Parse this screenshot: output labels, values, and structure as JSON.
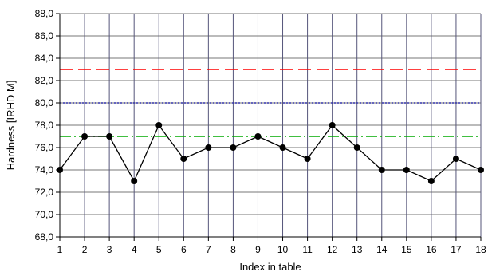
{
  "chart_data": {
    "type": "line",
    "xlabel": "Index in table",
    "ylabel": "Hardness [IRHD M]",
    "xlim": [
      1,
      18
    ],
    "ylim": [
      68,
      88
    ],
    "grid": true,
    "x": [
      1,
      2,
      3,
      4,
      5,
      6,
      7,
      8,
      9,
      10,
      11,
      12,
      13,
      14,
      15,
      16,
      17,
      18
    ],
    "x_tick_labels": [
      "1",
      "2",
      "3",
      "4",
      "5",
      "6",
      "7",
      "8",
      "9",
      "10",
      "11",
      "12",
      "13",
      "14",
      "15",
      "16",
      "17",
      "18"
    ],
    "y_ticks": [
      68,
      70,
      72,
      74,
      76,
      78,
      80,
      82,
      84,
      86,
      88
    ],
    "y_tick_labels": [
      "68,0",
      "70,0",
      "72,0",
      "74,0",
      "76,0",
      "78,0",
      "80,0",
      "82,0",
      "84,0",
      "86,0",
      "88,0"
    ],
    "series": [
      {
        "values": [
          74,
          77,
          77,
          73,
          78,
          75,
          76,
          76,
          77,
          76,
          75,
          78,
          76,
          74,
          74,
          73,
          75,
          74
        ],
        "color": "#000000",
        "marker": "circle"
      }
    ],
    "reference_lines": [
      {
        "value": 83,
        "color": "#ff0000",
        "style": "dashed"
      },
      {
        "value": 80,
        "color": "#3333aa",
        "style": "dotted"
      },
      {
        "value": 77,
        "color": "#00aa00",
        "style": "dash-dot"
      }
    ],
    "grid_colors": {
      "vertical": "#55557a",
      "horizontal": "#777777"
    }
  }
}
